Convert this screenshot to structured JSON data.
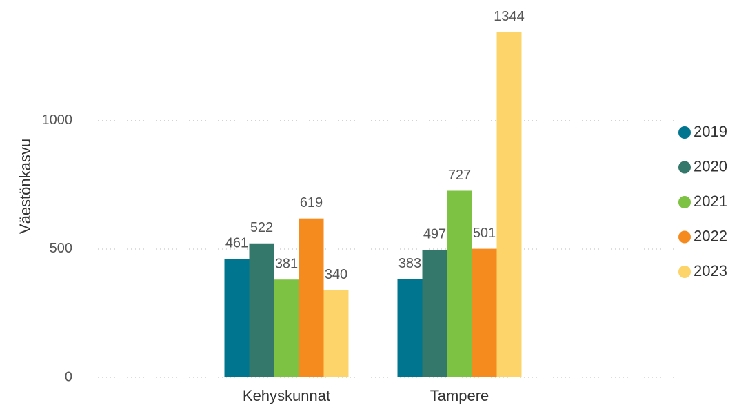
{
  "chart_data": {
    "type": "bar",
    "y_label": "Väestönkasvu",
    "categories": [
      "Kehyskunnat",
      "Tampere"
    ],
    "series": [
      {
        "name": "2019",
        "color": "#00758f",
        "values": [
          461,
          383
        ]
      },
      {
        "name": "2020",
        "color": "#34776b",
        "values": [
          522,
          497
        ]
      },
      {
        "name": "2021",
        "color": "#7dc242",
        "values": [
          381,
          727
        ]
      },
      {
        "name": "2022",
        "color": "#f58a1f",
        "values": [
          619,
          501
        ]
      },
      {
        "name": "2023",
        "color": "#fdd46a",
        "values": [
          340,
          1344
        ]
      }
    ],
    "ylim": [
      0,
      1470
    ],
    "yticks": [
      0,
      500,
      1000
    ],
    "grid": true,
    "legend": "right"
  }
}
